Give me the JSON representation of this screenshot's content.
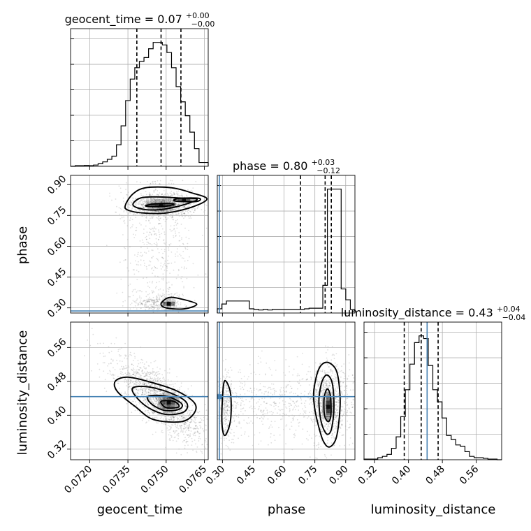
{
  "chart_data": {
    "type": "corner",
    "parameters": [
      {
        "key": "geocent_time",
        "label": "geocent_time",
        "range": [
          0.07125,
          0.07665
        ],
        "ticks": [
          0.072,
          0.0735,
          0.075,
          0.0765
        ],
        "tick_labels": [
          "0.0720",
          "0.0735",
          "0.0750",
          "0.0765"
        ],
        "truth": null
      },
      {
        "key": "phase",
        "label": "phase",
        "range": [
          0.275,
          0.945
        ],
        "ticks": [
          0.3,
          0.45,
          0.6,
          0.75,
          0.9
        ],
        "tick_labels": [
          "0.30",
          "0.45",
          "0.60",
          "0.75",
          "0.90"
        ],
        "truth": 0.285
      },
      {
        "key": "luminosity_distance",
        "label": "luminosity_distance",
        "range": [
          0.295,
          0.62
        ],
        "ticks": [
          0.32,
          0.4,
          0.48,
          0.56
        ],
        "tick_labels": [
          "0.32",
          "0.40",
          "0.48",
          "0.56"
        ],
        "truth": 0.444
      }
    ],
    "titles": {
      "geocent_time": {
        "base": "geocent_time = 0.07",
        "plus": "+0.00",
        "minus": "−0.00"
      },
      "phase": {
        "base": "phase = 0.80",
        "plus": "+0.03",
        "minus": "−0.12"
      },
      "luminosity_distance": {
        "base": "luminosity_distance = 0.43",
        "plus": "+0.04",
        "minus": "−0.04"
      }
    },
    "histograms": {
      "geocent_time": {
        "edges": [
          0.07125,
          0.07143,
          0.07161,
          0.07179,
          0.07197,
          0.07215,
          0.07233,
          0.07251,
          0.07269,
          0.07287,
          0.07305,
          0.07323,
          0.07341,
          0.07359,
          0.07377,
          0.07395,
          0.07413,
          0.07431,
          0.07449,
          0.07467,
          0.07485,
          0.07503,
          0.07521,
          0.07539,
          0.07557,
          0.07575,
          0.07593,
          0.07611,
          0.07629,
          0.07647,
          0.07665
        ],
        "counts": [
          0,
          0.5,
          0.5,
          0.7,
          0.5,
          1,
          2,
          3.5,
          5.5,
          8,
          17,
          32,
          52,
          69,
          78,
          83,
          86,
          93,
          98,
          98,
          96,
          90,
          78,
          63,
          51,
          40,
          27,
          14,
          3,
          3
        ],
        "quantiles": [
          0.07385,
          0.0748,
          0.07558
        ]
      },
      "phase": {
        "edges": [
          0.275,
          0.29733,
          0.31967,
          0.342,
          0.36433,
          0.38667,
          0.409,
          0.43133,
          0.45367,
          0.476,
          0.49833,
          0.52067,
          0.543,
          0.56533,
          0.58767,
          0.61,
          0.63233,
          0.65467,
          0.677,
          0.69933,
          0.72167,
          0.744,
          0.76633,
          0.78867,
          0.811,
          0.83333,
          0.85567,
          0.878,
          0.90033,
          0.92267,
          0.945
        ],
        "counts": [
          3.5,
          7.5,
          10,
          10,
          10,
          10,
          10,
          3.5,
          3,
          2.5,
          3,
          2.5,
          3,
          3,
          3,
          3,
          3,
          3,
          3,
          3.5,
          4,
          4,
          4,
          23,
          103,
          103,
          103,
          20,
          11,
          3
        ],
        "quantiles": [
          0.68,
          0.8,
          0.83
        ]
      },
      "luminosity_distance": {
        "edges": [
          0.295,
          0.30583,
          0.31667,
          0.3275,
          0.33833,
          0.34917,
          0.36,
          0.37083,
          0.38167,
          0.3925,
          0.40333,
          0.41417,
          0.425,
          0.43583,
          0.44667,
          0.4575,
          0.46833,
          0.47917,
          0.49,
          0.50083,
          0.51167,
          0.5225,
          0.53333,
          0.54417,
          0.555,
          0.56583,
          0.57667,
          0.5875,
          0.59833,
          0.60917,
          0.62
        ],
        "counts": [
          0.5,
          0.5,
          0.5,
          1.5,
          2.5,
          4,
          8.5,
          17,
          32,
          52,
          71,
          87,
          92,
          90,
          70,
          52,
          43,
          31,
          18,
          15,
          11,
          10,
          6,
          2.5,
          1.5,
          1.5,
          1,
          0.5,
          0.5,
          0
        ],
        "quantiles": [
          0.39,
          0.43,
          0.47
        ]
      }
    },
    "joint": {
      "phase_vs_geocent_time": {
        "modes": [
          {
            "x": 0.0748,
            "y": 0.8
          },
          {
            "x": 0.0757,
            "y": 0.825
          },
          {
            "x": 0.0751,
            "y": 0.32
          }
        ],
        "contours": [
          [
            [
              0.0734,
              0.8
            ],
            [
              0.0737,
              0.855
            ],
            [
              0.0742,
              0.885
            ],
            [
              0.0752,
              0.885
            ],
            [
              0.076,
              0.86
            ],
            [
              0.0766,
              0.83
            ],
            [
              0.076,
              0.79
            ],
            [
              0.075,
              0.762
            ],
            [
              0.0741,
              0.762
            ],
            [
              0.0735,
              0.776
            ]
          ],
          [
            [
              0.0737,
              0.8
            ],
            [
              0.074,
              0.835
            ],
            [
              0.0747,
              0.84
            ],
            [
              0.0755,
              0.835
            ],
            [
              0.0762,
              0.83
            ],
            [
              0.0759,
              0.81
            ],
            [
              0.075,
              0.782
            ],
            [
              0.0742,
              0.778
            ]
          ],
          [
            [
              0.0742,
              0.798
            ],
            [
              0.0747,
              0.808
            ],
            [
              0.0753,
              0.806
            ],
            [
              0.075,
              0.795
            ],
            [
              0.0744,
              0.793
            ]
          ],
          [
            [
              0.0753,
              0.825
            ],
            [
              0.0756,
              0.834
            ],
            [
              0.0763,
              0.833
            ],
            [
              0.0762,
              0.818
            ],
            [
              0.0755,
              0.818
            ]
          ],
          [
            [
              0.0748,
              0.32
            ],
            [
              0.0751,
              0.35
            ],
            [
              0.0756,
              0.343
            ],
            [
              0.0762,
              0.318
            ],
            [
              0.0757,
              0.295
            ],
            [
              0.075,
              0.3
            ]
          ]
        ]
      },
      "luminosity_distance_vs_geocent_time": {
        "modes": [
          {
            "x": 0.0751,
            "y": 0.43
          }
        ],
        "contours": [
          [
            [
              0.073,
              0.48
            ],
            [
              0.0735,
              0.49
            ],
            [
              0.0744,
              0.478
            ],
            [
              0.0754,
              0.458
            ],
            [
              0.0761,
              0.43
            ],
            [
              0.0761,
              0.405
            ],
            [
              0.0756,
              0.385
            ],
            [
              0.0745,
              0.39
            ],
            [
              0.0738,
              0.42
            ],
            [
              0.0731,
              0.455
            ]
          ],
          [
            [
              0.0737,
              0.465
            ],
            [
              0.0743,
              0.467
            ],
            [
              0.0752,
              0.452
            ],
            [
              0.0758,
              0.43
            ],
            [
              0.0757,
              0.408
            ],
            [
              0.075,
              0.402
            ],
            [
              0.0743,
              0.418
            ],
            [
              0.0738,
              0.445
            ]
          ],
          [
            [
              0.0743,
              0.445
            ],
            [
              0.075,
              0.445
            ],
            [
              0.0756,
              0.428
            ],
            [
              0.0755,
              0.414
            ],
            [
              0.0749,
              0.412
            ],
            [
              0.0744,
              0.428
            ]
          ],
          [
            [
              0.0748,
              0.433
            ],
            [
              0.0753,
              0.433
            ],
            [
              0.0755,
              0.42
            ],
            [
              0.075,
              0.418
            ]
          ]
        ]
      },
      "luminosity_distance_vs_phase": {
        "modes": [
          {
            "x": 0.815,
            "y": 0.42
          }
        ],
        "contours": [
          [
            [
              0.297,
              0.4
            ],
            [
              0.305,
              0.47
            ],
            [
              0.318,
              0.48
            ],
            [
              0.34,
              0.45
            ],
            [
              0.34,
              0.39
            ],
            [
              0.318,
              0.355
            ],
            [
              0.303,
              0.36
            ]
          ],
          [
            [
              0.745,
              0.46
            ],
            [
              0.77,
              0.51
            ],
            [
              0.81,
              0.525
            ],
            [
              0.855,
              0.505
            ],
            [
              0.872,
              0.45
            ],
            [
              0.87,
              0.4
            ],
            [
              0.853,
              0.345
            ],
            [
              0.82,
              0.325
            ],
            [
              0.79,
              0.34
            ],
            [
              0.765,
              0.38
            ],
            [
              0.748,
              0.42
            ]
          ],
          [
            [
              0.77,
              0.44
            ],
            [
              0.785,
              0.48
            ],
            [
              0.81,
              0.495
            ],
            [
              0.835,
              0.475
            ],
            [
              0.843,
              0.42
            ],
            [
              0.832,
              0.37
            ],
            [
              0.812,
              0.355
            ],
            [
              0.79,
              0.37
            ],
            [
              0.775,
              0.4
            ]
          ],
          [
            [
              0.795,
              0.44
            ],
            [
              0.81,
              0.462
            ],
            [
              0.826,
              0.445
            ],
            [
              0.828,
              0.4
            ],
            [
              0.815,
              0.385
            ],
            [
              0.797,
              0.4
            ]
          ]
        ]
      }
    }
  }
}
